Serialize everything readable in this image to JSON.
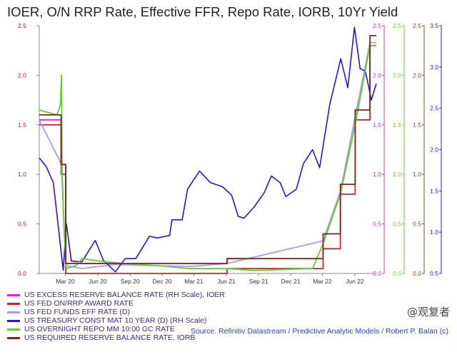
{
  "chart_data": {
    "type": "line",
    "title": "IOER, O/N RRP Rate, Effective FFR, Repo Rate, IORB, 10Yr Yield",
    "x_ticks": [
      "Mar 20",
      "Jun 20",
      "Sep 20",
      "Dec 20",
      "Mar 21",
      "Jun 21",
      "Sep 21",
      "Dec 21",
      "Mar 22",
      "Jun 22"
    ],
    "x_range": [
      "2020-01-01",
      "2022-08-15"
    ],
    "left_axis": {
      "ticks": [
        "2.5",
        "2.0",
        "1.5",
        "1.0",
        "0.5",
        "0.0"
      ],
      "range": [
        0,
        2.5
      ]
    },
    "right_axes": [
      {
        "name": "magenta",
        "color": "#cc33cc",
        "ticks": [
          "2.5",
          "2.0",
          "1.5",
          "1.0",
          "0.5",
          "0.0"
        ],
        "range": [
          0,
          2.5
        ]
      },
      {
        "name": "green",
        "color": "#66cc33",
        "ticks": [
          "2.5",
          "2.0",
          "1.5",
          "1.0",
          "0.5",
          "0.0"
        ],
        "range": [
          0,
          2.5
        ]
      },
      {
        "name": "brown",
        "color": "#884422",
        "ticks": [
          "2.5",
          "2.0",
          "1.5",
          "1.0",
          "0.5",
          "0.0"
        ],
        "range": [
          0,
          2.5
        ]
      },
      {
        "name": "blue",
        "color": "#3311cc",
        "ticks": [
          "3.5",
          "3.0",
          "2.5",
          "2.0",
          "1.5",
          "1.0",
          "0.5"
        ],
        "range": [
          0.5,
          3.5
        ]
      }
    ],
    "grid": false,
    "series": [
      {
        "name": "US EXCESS RESERVE BALANCE RATE (RH Scale), IOER",
        "color": "#dd22dd",
        "axis": "magenta",
        "points": [
          [
            "2020-01-01",
            1.55
          ],
          [
            "2020-03-03",
            1.1
          ],
          [
            "2020-03-16",
            0.1
          ],
          [
            "2021-06-17",
            0.15
          ],
          [
            "2021-07-28",
            0.15
          ]
        ]
      },
      {
        "name": "US FED ON/RRP AWARD RATE",
        "color": "#cc2233",
        "axis": "left",
        "points": [
          [
            "2020-01-01",
            1.5
          ],
          [
            "2020-03-03",
            1.0
          ],
          [
            "2020-03-16",
            0.0
          ],
          [
            "2021-06-17",
            0.05
          ],
          [
            "2022-03-17",
            0.25
          ],
          [
            "2022-05-05",
            0.8
          ],
          [
            "2022-06-16",
            1.55
          ],
          [
            "2022-07-28",
            2.3
          ],
          [
            "2022-08-15",
            2.3
          ]
        ]
      },
      {
        "name": "US FED FUNDS EFF RATE (D)",
        "color": "#aa99ee",
        "axis": "left",
        "points": [
          [
            "2020-01-01",
            1.55
          ],
          [
            "2020-03-04",
            1.1
          ],
          [
            "2020-03-16",
            0.08
          ],
          [
            "2020-05-01",
            0.05
          ],
          [
            "2020-08-01",
            0.09
          ],
          [
            "2021-03-01",
            0.07
          ],
          [
            "2021-06-17",
            0.1
          ],
          [
            "2022-03-17",
            0.33
          ],
          [
            "2022-05-05",
            0.83
          ],
          [
            "2022-06-16",
            1.58
          ],
          [
            "2022-07-28",
            2.33
          ],
          [
            "2022-08-15",
            2.33
          ]
        ]
      },
      {
        "name": "US TREASURY CONST MAT 10 YEAR (D) (RH Scale)",
        "color": "#2a11dd",
        "axis": "blue",
        "points": [
          [
            "2020-01-01",
            1.9
          ],
          [
            "2020-01-20",
            1.8
          ],
          [
            "2020-02-10",
            1.6
          ],
          [
            "2020-03-09",
            0.54
          ],
          [
            "2020-03-18",
            1.1
          ],
          [
            "2020-04-01",
            0.65
          ],
          [
            "2020-05-01",
            0.64
          ],
          [
            "2020-06-08",
            0.9
          ],
          [
            "2020-07-01",
            0.66
          ],
          [
            "2020-08-04",
            0.52
          ],
          [
            "2020-09-01",
            0.68
          ],
          [
            "2020-10-01",
            0.68
          ],
          [
            "2020-11-09",
            0.95
          ],
          [
            "2020-12-01",
            0.93
          ],
          [
            "2021-01-05",
            0.96
          ],
          [
            "2021-01-12",
            1.15
          ],
          [
            "2021-02-10",
            1.15
          ],
          [
            "2021-02-25",
            1.52
          ],
          [
            "2021-03-31",
            1.74
          ],
          [
            "2021-05-01",
            1.6
          ],
          [
            "2021-06-04",
            1.55
          ],
          [
            "2021-06-30",
            1.45
          ],
          [
            "2021-07-19",
            1.19
          ],
          [
            "2021-08-04",
            1.17
          ],
          [
            "2021-09-01",
            1.3
          ],
          [
            "2021-10-01",
            1.48
          ],
          [
            "2021-10-21",
            1.68
          ],
          [
            "2021-11-15",
            1.6
          ],
          [
            "2021-12-01",
            1.43
          ],
          [
            "2021-12-31",
            1.52
          ],
          [
            "2022-01-20",
            1.83
          ],
          [
            "2022-02-15",
            2.0
          ],
          [
            "2022-03-07",
            1.78
          ],
          [
            "2022-04-05",
            2.55
          ],
          [
            "2022-05-06",
            3.1
          ],
          [
            "2022-05-26",
            2.75
          ],
          [
            "2022-06-14",
            3.48
          ],
          [
            "2022-06-30",
            2.98
          ],
          [
            "2022-07-15",
            2.95
          ],
          [
            "2022-08-01",
            2.6
          ],
          [
            "2022-08-15",
            2.8
          ]
        ]
      },
      {
        "name": "US OVERNIGHT REPO MM 10:00 GC RATE",
        "color": "#66cc33",
        "axis": "green",
        "points": [
          [
            "2020-01-01",
            1.65
          ],
          [
            "2020-02-20",
            1.6
          ],
          [
            "2020-03-01",
            1.7
          ],
          [
            "2020-03-04",
            2.0
          ],
          [
            "2020-03-06",
            1.0
          ],
          [
            "2020-03-12",
            0.4
          ],
          [
            "2020-03-18",
            0.05
          ],
          [
            "2020-04-15",
            0.08
          ],
          [
            "2020-05-01",
            0.15
          ],
          [
            "2020-07-01",
            0.12
          ],
          [
            "2020-09-01",
            0.1
          ],
          [
            "2020-12-01",
            0.08
          ],
          [
            "2021-03-01",
            0.05
          ],
          [
            "2021-06-17",
            0.05
          ],
          [
            "2021-09-01",
            0.03
          ],
          [
            "2022-02-15",
            0.05
          ],
          [
            "2022-03-17",
            0.3
          ],
          [
            "2022-05-05",
            0.8
          ],
          [
            "2022-06-16",
            1.5
          ],
          [
            "2022-07-28",
            2.3
          ],
          [
            "2022-08-15",
            2.3
          ]
        ]
      },
      {
        "name": "US REQUIRED RESERVE BALANCE RATE, IORB",
        "color": "#7a2a1a",
        "axis": "brown",
        "points": [
          [
            "2020-01-01",
            1.6
          ],
          [
            "2020-03-03",
            1.1
          ],
          [
            "2020-03-16",
            0.1
          ],
          [
            "2021-06-17",
            0.15
          ],
          [
            "2022-03-17",
            0.4
          ],
          [
            "2022-05-05",
            0.9
          ],
          [
            "2022-06-16",
            1.65
          ],
          [
            "2022-07-28",
            2.4
          ],
          [
            "2022-08-15",
            2.4
          ]
        ]
      }
    ]
  },
  "legend": [
    {
      "label": "US EXCESS RESERVE BALANCE RATE (RH Scale), IOER",
      "color": "#dd22dd"
    },
    {
      "label": "US FED ON/RRP AWARD RATE",
      "color": "#cc2233"
    },
    {
      "label": "US FED FUNDS EFF RATE (D)",
      "color": "#aa99ee"
    },
    {
      "label": "US TREASURY CONST MAT 10 YEAR (D) (RH Scale)",
      "color": "#2a11dd"
    },
    {
      "label": "US OVERNIGHT REPO MM 10:00 GC RATE",
      "color": "#66cc33"
    },
    {
      "label": "US REQUIRED RESERVE BALANCE RATE, IORB",
      "color": "#7a2a1a"
    }
  ],
  "source": "Source: Refinitiv Datastream / Predictive Analytic Models / Robert P. Balan (c)",
  "watermark": "@观复者"
}
